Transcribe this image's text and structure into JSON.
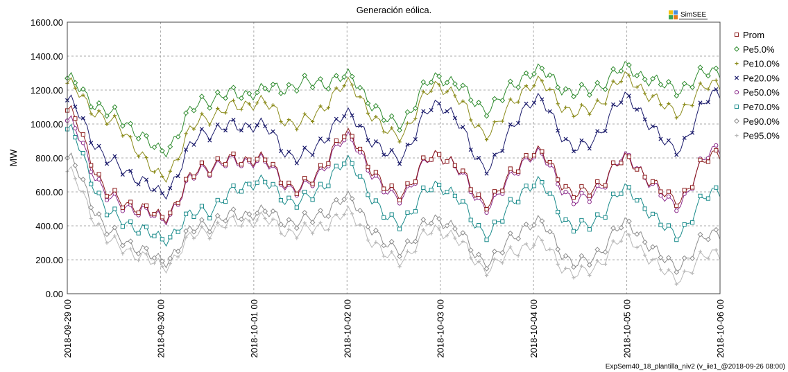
{
  "chart_data": {
    "type": "line",
    "title": "Generación eólica.",
    "ylabel": "MW",
    "xlabel": "",
    "ylim": [
      0,
      1600
    ],
    "yticks": [
      "0.00",
      "200.00",
      "400.00",
      "600.00",
      "800.00",
      "1000.00",
      "1200.00",
      "1400.00",
      "1600.00"
    ],
    "xlim": [
      0,
      7
    ],
    "x_unit": "days since 2018-09-29 00",
    "xtick_labels": [
      "2018-09-29 00",
      "2018-09-30 00",
      "2018-10-01 00",
      "2018-10-02 00",
      "2018-10-03 00",
      "2018-10-04 00",
      "2018-10-05 00",
      "2018-10-06 00"
    ],
    "grid": true,
    "legend_position": "right",
    "x": [
      0.0,
      0.5,
      1.0,
      1.5,
      2.0,
      2.5,
      3.0,
      3.5,
      4.0,
      4.5,
      5.0,
      5.5,
      6.0,
      6.5,
      7.0
    ],
    "series": [
      {
        "name": "Prom",
        "color": "#8b1a1a",
        "marker": "square",
        "values": [
          1060,
          560,
          460,
          760,
          800,
          620,
          920,
          590,
          820,
          550,
          830,
          580,
          780,
          560,
          840
        ]
      },
      {
        "name": "Pe5.0%",
        "color": "#2e8b2e",
        "marker": "diamond",
        "values": [
          1250,
          1050,
          850,
          1150,
          1190,
          1230,
          1270,
          1000,
          1280,
          1100,
          1310,
          1180,
          1320,
          1210,
          1320
        ]
      },
      {
        "name": "Pe10.0%",
        "color": "#8b8b1a",
        "marker": "plus",
        "values": [
          1220,
          1000,
          700,
          1050,
          1130,
          1000,
          1220,
          930,
          1230,
          960,
          1240,
          1060,
          1260,
          1080,
          1250
        ]
      },
      {
        "name": "Pe20.0%",
        "color": "#1a1a6b",
        "marker": "x",
        "values": [
          1120,
          760,
          600,
          960,
          1000,
          800,
          1040,
          800,
          1120,
          760,
          1140,
          850,
          1140,
          860,
          1200
        ]
      },
      {
        "name": "Pe50.0%",
        "color": "#8b2a8b",
        "marker": "circle",
        "values": [
          1000,
          540,
          450,
          750,
          790,
          610,
          900,
          570,
          820,
          530,
          820,
          540,
          790,
          530,
          870
        ]
      },
      {
        "name": "Pe70.0%",
        "color": "#1a8b8b",
        "marker": "square",
        "values": [
          950,
          450,
          330,
          500,
          660,
          540,
          760,
          420,
          640,
          370,
          650,
          380,
          600,
          360,
          620
        ]
      },
      {
        "name": "Pe90.0%",
        "color": "#8c8c8c",
        "marker": "diamond",
        "values": [
          780,
          340,
          200,
          420,
          480,
          420,
          550,
          260,
          440,
          200,
          420,
          170,
          400,
          170,
          370
        ]
      },
      {
        "name": "Pe95.0%",
        "color": "#b8b8b8",
        "marker": "plus",
        "values": [
          700,
          290,
          170,
          380,
          440,
          360,
          460,
          200,
          380,
          160,
          300,
          110,
          320,
          100,
          250
        ]
      }
    ]
  },
  "logo": {
    "text": "SimSEE",
    "colors": [
      "#f4c20d",
      "#4a90d9",
      "#3aa655",
      "#e07b1a"
    ]
  },
  "footer_text": "ExpSem40_18_plantilla_niv2 (v_iie1_@2018-09-26 08:00)"
}
